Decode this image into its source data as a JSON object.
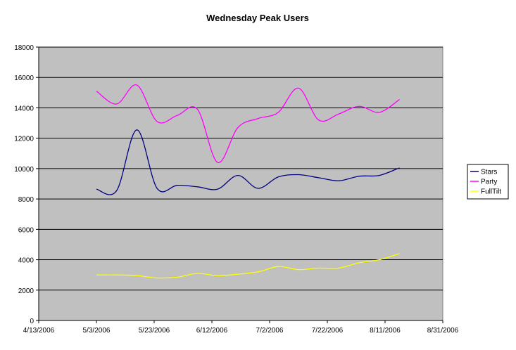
{
  "chart_data": {
    "type": "line",
    "title": "Wednesday Peak Users",
    "xlabel": "",
    "ylabel": "",
    "ylim": [
      0,
      18000
    ],
    "y_ticks": [
      "0",
      "2000",
      "4000",
      "6000",
      "8000",
      "10000",
      "12000",
      "14000",
      "16000",
      "18000"
    ],
    "x_range": [
      "2006-04-13",
      "2006-08-31"
    ],
    "x_ticks": [
      {
        "date": "2006-04-13",
        "label": "4/13/2006"
      },
      {
        "date": "2006-05-03",
        "label": "5/3/2006"
      },
      {
        "date": "2006-05-23",
        "label": "5/23/2006"
      },
      {
        "date": "2006-06-12",
        "label": "6/12/2006"
      },
      {
        "date": "2006-07-02",
        "label": "7/2/2006"
      },
      {
        "date": "2006-07-22",
        "label": "7/22/2006"
      },
      {
        "date": "2006-08-11",
        "label": "8/11/2006"
      },
      {
        "date": "2006-08-31",
        "label": "8/31/2006"
      }
    ],
    "grid": "horizontal",
    "plot_background": "#c0c0c0",
    "legend_position": "right",
    "x": [
      "2006-05-03",
      "2006-05-10",
      "2006-05-17",
      "2006-05-24",
      "2006-05-31",
      "2006-06-07",
      "2006-06-14",
      "2006-06-21",
      "2006-06-28",
      "2006-07-05",
      "2006-07-12",
      "2006-07-19",
      "2006-07-26",
      "2006-08-02",
      "2006-08-09",
      "2006-08-16"
    ],
    "series": [
      {
        "name": "Stars",
        "color": "#000080",
        "values": [
          8650,
          8550,
          12550,
          8700,
          8900,
          8800,
          8650,
          9550,
          8700,
          9450,
          9600,
          9400,
          9200,
          9500,
          9550,
          10050
        ]
      },
      {
        "name": "Party",
        "color": "#ff00ff",
        "values": [
          15100,
          14250,
          15500,
          13100,
          13500,
          13900,
          10400,
          12700,
          13300,
          13700,
          15300,
          13200,
          13600,
          14100,
          13700,
          14550
        ]
      },
      {
        "name": "FullTilt",
        "color": "#ffff00",
        "values": [
          3000,
          3000,
          2950,
          2800,
          2850,
          3100,
          2950,
          3050,
          3200,
          3550,
          3350,
          3450,
          3450,
          3800,
          4000,
          4400
        ]
      }
    ]
  }
}
